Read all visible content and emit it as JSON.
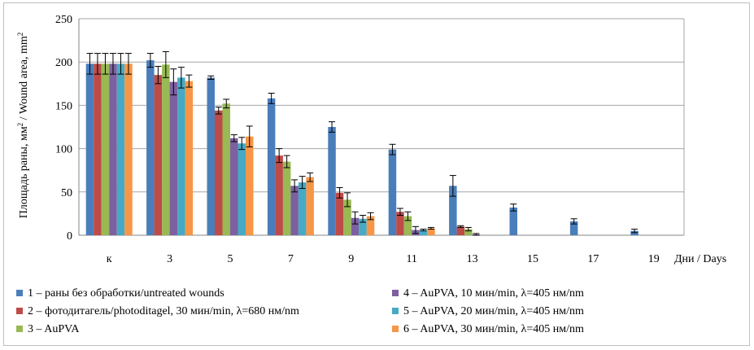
{
  "chart_data": {
    "type": "bar",
    "ylabel_ru": "Площадь раны, мм",
    "ylabel_en": "Wound area, mm",
    "ylabel_sep": " /  ",
    "ylabel_sup": "2",
    "xlabel": "Дни / Days",
    "ylim": [
      0,
      250
    ],
    "yticks": [
      "0",
      "50",
      "100",
      "150",
      "200",
      "250"
    ],
    "grid": true,
    "legend_position": "bottom",
    "categories": [
      "к",
      "3",
      "5",
      "7",
      "9",
      "11",
      "13",
      "15",
      "17",
      "19"
    ],
    "series": [
      {
        "name": "1 – раны без обработки/untreated wounds",
        "color": "#4a7ebb",
        "values": [
          198,
          202,
          182,
          158,
          125,
          99,
          57,
          32,
          16,
          5
        ],
        "errors": [
          12,
          8,
          2,
          6,
          6,
          6,
          12,
          4,
          3,
          2
        ]
      },
      {
        "name": "2 – фотодитагель/photoditagel, 30 мин/min, λ=680 нм/nm",
        "color": "#be4b48",
        "values": [
          198,
          185,
          144,
          92,
          49,
          27,
          10,
          0,
          0,
          0
        ],
        "errors": [
          12,
          10,
          4,
          8,
          6,
          4,
          1,
          0,
          0,
          0
        ]
      },
      {
        "name": "3 – AuPVA",
        "color": "#98b954",
        "values": [
          198,
          197,
          152,
          85,
          41,
          22,
          7,
          0,
          0,
          0
        ],
        "errors": [
          12,
          15,
          5,
          7,
          8,
          5,
          2,
          0,
          0,
          0
        ]
      },
      {
        "name": "4 – AuPVA,  10 мин/min, λ=405 нм/nm",
        "color": "#7d60a0",
        "values": [
          198,
          177,
          112,
          57,
          20,
          6,
          1,
          0,
          0,
          0
        ],
        "errors": [
          12,
          15,
          4,
          7,
          7,
          4,
          1,
          0,
          0,
          0
        ]
      },
      {
        "name": "5 – AuPVA, 20 мин/min, λ=405 нм/nm",
        "color": "#46aac5",
        "values": [
          198,
          182,
          106,
          61,
          19,
          6,
          0,
          0,
          0,
          0
        ],
        "errors": [
          12,
          12,
          7,
          7,
          4,
          1,
          0,
          0,
          0,
          0
        ]
      },
      {
        "name": "6 –  AuPVA, 30 мин/min, λ=405 нм/nm",
        "color": "#f79646",
        "values": [
          198,
          178,
          114,
          67,
          22,
          8,
          0,
          0,
          0,
          0
        ],
        "errors": [
          12,
          7,
          12,
          5,
          4,
          1,
          0,
          0,
          0,
          0
        ]
      }
    ]
  }
}
